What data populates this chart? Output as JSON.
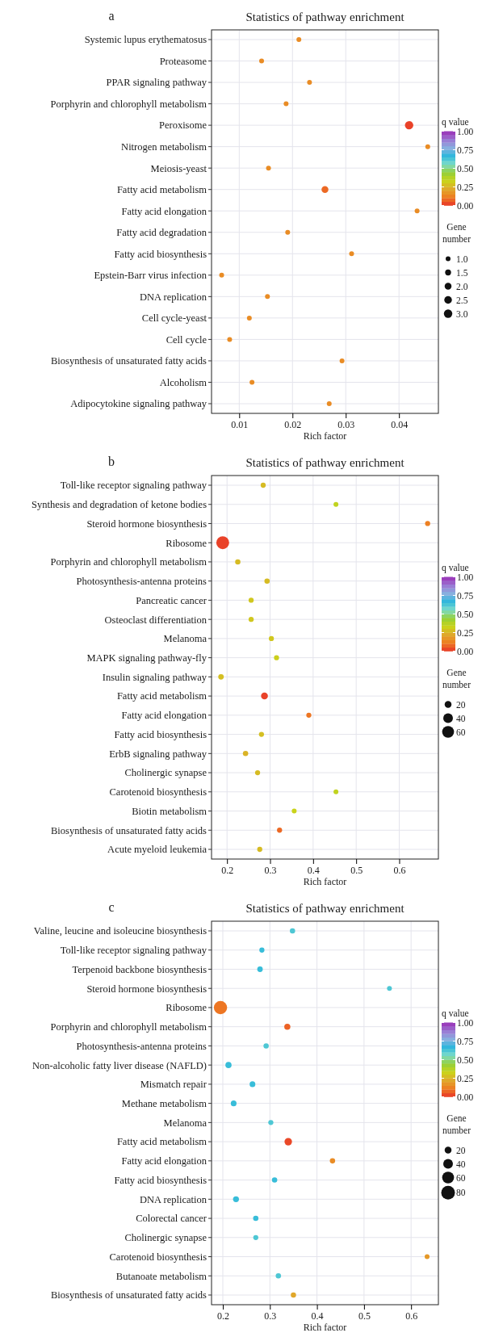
{
  "chart_data": [
    {
      "type": "bubble",
      "title": "Statistics of pathway enrichment",
      "annotations": [
        "a"
      ],
      "xlabel": "Rich factor",
      "orientation": "horizontal",
      "grid": true,
      "clabel": "q value",
      "legend_title": "Gene number",
      "categories": [
        "Systemic lupus erythematosus",
        "Proteasome",
        "PPAR signaling pathway",
        "Porphyrin and chlorophyll metabolism",
        "Peroxisome",
        "Nitrogen metabolism",
        "Meiosis-yeast",
        "Fatty acid metabolism",
        "Fatty acid elongation",
        "Fatty acid degradation",
        "Fatty acid biosynthesis",
        "Epstein-Barr virus infection",
        "DNA replication",
        "Cell cycle-yeast",
        "Cell cycle",
        "Biosynthesis of unsaturated fatty acids",
        "Alcoholism",
        "Adipocytokine signaling pathway"
      ],
      "values": [
        0.0212,
        0.0142,
        0.0232,
        0.0188,
        0.0419,
        0.0454,
        0.0155,
        0.0261,
        0.0434,
        0.0191,
        0.0311,
        0.0067,
        0.0153,
        0.0119,
        0.0082,
        0.0293,
        0.0124,
        0.0269
      ],
      "sizes": [
        1,
        1,
        1,
        1,
        3,
        1,
        1,
        2,
        1,
        1,
        1,
        1,
        1,
        1,
        1,
        1,
        1,
        1
      ],
      "cvalues": [
        0.15,
        0.15,
        0.15,
        0.15,
        0.02,
        0.15,
        0.15,
        0.08,
        0.15,
        0.15,
        0.15,
        0.15,
        0.15,
        0.15,
        0.15,
        0.15,
        0.15,
        0.15
      ],
      "xlim": [
        0.0048,
        0.0474
      ],
      "xticks": [
        0.01,
        0.02,
        0.03,
        0.04
      ],
      "clim": [
        0,
        1
      ],
      "cticks": [
        {
          "value": 0,
          "label": "0.00"
        },
        {
          "value": 0.25,
          "label": "0.25"
        },
        {
          "value": 0.5,
          "label": "0.50"
        },
        {
          "value": 0.75,
          "label": "0.75"
        },
        {
          "value": 1,
          "label": "1.00"
        }
      ],
      "size_legend": [
        {
          "value": 1,
          "label": "1.0"
        },
        {
          "value": 1.5,
          "label": "1.5"
        },
        {
          "value": 2,
          "label": "2.0"
        },
        {
          "value": 2.5,
          "label": "2.5"
        },
        {
          "value": 3,
          "label": "3.0"
        }
      ]
    },
    {
      "type": "bubble",
      "title": "Statistics of pathway enrichment",
      "annotations": [
        "b"
      ],
      "xlabel": "Rich factor",
      "orientation": "horizontal",
      "grid": true,
      "clabel": "q value",
      "legend_title": "Gene number",
      "categories": [
        "Toll-like receptor signaling pathway",
        "Synthesis and degradation of ketone bodies",
        "Steroid hormone biosynthesis",
        "Ribosome",
        "Porphyrin and chlorophyll metabolism",
        "Photosynthesis-antenna proteins",
        "Pancreatic cancer",
        "Osteoclast differentiation",
        "Melanoma",
        "MAPK signaling pathway-fly",
        "Insulin signaling pathway",
        "Fatty acid metabolism",
        "Fatty acid elongation",
        "Fatty acid biosynthesis",
        "ErbB signaling pathway",
        "Cholinergic synapse",
        "Carotenoid biosynthesis",
        "Biotin metabolism",
        "Biosynthesis of unsaturated fatty acids",
        "Acute myeloid leukemia"
      ],
      "values": [
        0.284,
        0.453,
        0.666,
        0.19,
        0.225,
        0.293,
        0.256,
        0.256,
        0.303,
        0.315,
        0.186,
        0.287,
        0.39,
        0.28,
        0.243,
        0.271,
        0.453,
        0.356,
        0.322,
        0.276
      ],
      "sizes": [
        11,
        10,
        11,
        70,
        12,
        12,
        11,
        11,
        11,
        11,
        13,
        20,
        11,
        11,
        12,
        11,
        10,
        10,
        11,
        11
      ],
      "cvalues": [
        0.27,
        0.35,
        0.12,
        0.02,
        0.27,
        0.27,
        0.3,
        0.3,
        0.3,
        0.32,
        0.28,
        0.02,
        0.1,
        0.28,
        0.25,
        0.27,
        0.35,
        0.33,
        0.08,
        0.27
      ],
      "xlim": [
        0.164,
        0.691
      ],
      "xticks": [
        0.2,
        0.3,
        0.4,
        0.5,
        0.6
      ],
      "clim": [
        0,
        1
      ],
      "cticks": [
        {
          "value": 0,
          "label": "0.00"
        },
        {
          "value": 0.25,
          "label": "0.25"
        },
        {
          "value": 0.5,
          "label": "0.50"
        },
        {
          "value": 0.75,
          "label": "0.75"
        },
        {
          "value": 1,
          "label": "1.00"
        }
      ],
      "size_legend": [
        20,
        40,
        60
      ]
    },
    {
      "type": "bubble",
      "title": "Statistics of pathway enrichment",
      "annotations": [
        "c"
      ],
      "xlabel": "Rich factor",
      "orientation": "horizontal",
      "grid": true,
      "clabel": "q value",
      "legend_title": "Gene number",
      "categories": [
        "Valine, leucine and isoleucine biosynthesis",
        "Toll-like receptor signaling pathway",
        "Terpenoid backbone biosynthesis",
        "Steroid hormone biosynthesis",
        "Ribosome",
        "Porphyrin and chlorophyll metabolism",
        "Photosynthesis-antenna proteins",
        "Non-alcoholic fatty liver disease (NAFLD)",
        "Mismatch repair",
        "Methane metabolism",
        "Melanoma",
        "Fatty acid metabolism",
        "Fatty acid elongation",
        "Fatty acid biosynthesis",
        "DNA replication",
        "Colorectal cancer",
        "Cholinergic synapse",
        "Carotenoid biosynthesis",
        "Butanoate metabolism",
        "Biosynthesis of unsaturated fatty acids"
      ],
      "values": [
        0.348,
        0.283,
        0.279,
        0.554,
        0.195,
        0.337,
        0.292,
        0.212,
        0.263,
        0.223,
        0.302,
        0.339,
        0.433,
        0.31,
        0.228,
        0.27,
        0.27,
        0.634,
        0.318,
        0.35
      ],
      "sizes": [
        12,
        11,
        13,
        10,
        75,
        16,
        12,
        16,
        14,
        14,
        11,
        24,
        12,
        12,
        15,
        12,
        11,
        10,
        12,
        12
      ],
      "cvalues": [
        0.62,
        0.65,
        0.65,
        0.62,
        0.1,
        0.07,
        0.62,
        0.65,
        0.65,
        0.65,
        0.62,
        0.03,
        0.15,
        0.65,
        0.65,
        0.65,
        0.62,
        0.18,
        0.62,
        0.22
      ],
      "xlim": [
        0.176,
        0.658
      ],
      "xticks": [
        0.2,
        0.3,
        0.4,
        0.5,
        0.6
      ],
      "clim": [
        0,
        1
      ],
      "cticks": [
        {
          "value": 0,
          "label": "0.00"
        },
        {
          "value": 0.25,
          "label": "0.25"
        },
        {
          "value": 0.5,
          "label": "0.50"
        },
        {
          "value": 0.75,
          "label": "0.75"
        },
        {
          "value": 1,
          "label": "1.00"
        }
      ],
      "size_legend": [
        20,
        40,
        60,
        80
      ]
    }
  ]
}
